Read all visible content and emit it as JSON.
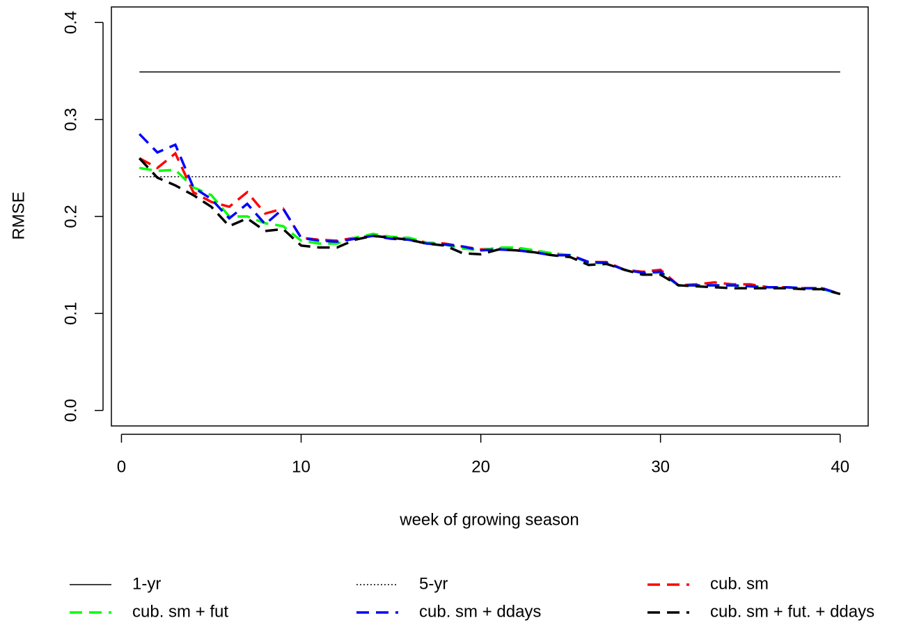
{
  "chart_data": {
    "type": "line",
    "x_label": "week of growing season",
    "y_label": "RMSE",
    "x": [
      1,
      2,
      3,
      4,
      5,
      6,
      7,
      8,
      9,
      10,
      11,
      12,
      13,
      14,
      15,
      16,
      17,
      18,
      19,
      20,
      21,
      22,
      23,
      24,
      25,
      26,
      27,
      28,
      29,
      30,
      31,
      32,
      33,
      34,
      35,
      36,
      37,
      38,
      39,
      40
    ],
    "series": [
      {
        "name": "1-yr",
        "color": "#000000",
        "linestyle": "solid",
        "values": [
          0.349,
          0.349,
          0.349,
          0.349,
          0.349,
          0.349,
          0.349,
          0.349,
          0.349,
          0.349,
          0.349,
          0.349,
          0.349,
          0.349,
          0.349,
          0.349,
          0.349,
          0.349,
          0.349,
          0.349,
          0.349,
          0.349,
          0.349,
          0.349,
          0.349,
          0.349,
          0.349,
          0.349,
          0.349,
          0.349,
          0.349,
          0.349,
          0.349,
          0.349,
          0.349,
          0.349,
          0.349,
          0.349,
          0.349,
          0.349
        ]
      },
      {
        "name": "5-yr",
        "color": "#000000",
        "linestyle": "dotted",
        "values": [
          0.241,
          0.241,
          0.241,
          0.241,
          0.241,
          0.241,
          0.241,
          0.241,
          0.241,
          0.241,
          0.241,
          0.241,
          0.241,
          0.241,
          0.241,
          0.241,
          0.241,
          0.241,
          0.241,
          0.241,
          0.241,
          0.241,
          0.241,
          0.241,
          0.241,
          0.241,
          0.241,
          0.241,
          0.241,
          0.241,
          0.241,
          0.241,
          0.241,
          0.241,
          0.241,
          0.241,
          0.241,
          0.241,
          0.241,
          0.241
        ]
      },
      {
        "name": "cub. sm",
        "color": "#ff0000",
        "linestyle": "dashed",
        "values": [
          0.26,
          0.25,
          0.265,
          0.225,
          0.215,
          0.21,
          0.225,
          0.203,
          0.208,
          0.178,
          0.176,
          0.175,
          0.178,
          0.18,
          0.179,
          0.177,
          0.173,
          0.172,
          0.169,
          0.166,
          0.167,
          0.167,
          0.164,
          0.162,
          0.16,
          0.153,
          0.153,
          0.145,
          0.143,
          0.145,
          0.129,
          0.13,
          0.132,
          0.13,
          0.13,
          0.127,
          0.127,
          0.126,
          0.126,
          0.12
        ]
      },
      {
        "name": "cub. sm + fut",
        "color": "#00ff00",
        "linestyle": "dashed",
        "values": [
          0.25,
          0.247,
          0.248,
          0.23,
          0.222,
          0.2,
          0.2,
          0.193,
          0.19,
          0.175,
          0.172,
          0.172,
          0.178,
          0.182,
          0.179,
          0.178,
          0.173,
          0.171,
          0.167,
          0.165,
          0.168,
          0.168,
          0.165,
          0.162,
          0.16,
          0.152,
          0.152,
          0.145,
          0.142,
          0.142,
          0.129,
          0.129,
          0.129,
          0.129,
          0.128,
          0.127,
          0.127,
          0.126,
          0.125,
          0.12
        ]
      },
      {
        "name": "cub. sm + ddays",
        "color": "#0000ff",
        "linestyle": "dashed",
        "values": [
          0.285,
          0.266,
          0.274,
          0.23,
          0.218,
          0.198,
          0.213,
          0.192,
          0.208,
          0.178,
          0.175,
          0.174,
          0.177,
          0.18,
          0.177,
          0.176,
          0.172,
          0.171,
          0.169,
          0.165,
          0.166,
          0.165,
          0.163,
          0.16,
          0.16,
          0.153,
          0.152,
          0.145,
          0.142,
          0.143,
          0.129,
          0.129,
          0.129,
          0.129,
          0.128,
          0.127,
          0.127,
          0.126,
          0.126,
          0.12
        ]
      },
      {
        "name": "cub. sm + fut. + ddays",
        "color": "#000000",
        "linestyle": "dashed",
        "values": [
          0.26,
          0.24,
          0.232,
          0.222,
          0.21,
          0.19,
          0.198,
          0.185,
          0.187,
          0.17,
          0.168,
          0.168,
          0.176,
          0.18,
          0.178,
          0.176,
          0.172,
          0.17,
          0.162,
          0.161,
          0.166,
          0.165,
          0.163,
          0.16,
          0.158,
          0.15,
          0.151,
          0.145,
          0.14,
          0.14,
          0.129,
          0.128,
          0.127,
          0.126,
          0.126,
          0.126,
          0.126,
          0.125,
          0.125,
          0.12
        ]
      }
    ],
    "xlim": [
      -0.56,
      41.56
    ],
    "ylim": [
      -0.016,
      0.416
    ],
    "xticks": [
      0,
      10,
      20,
      30,
      40
    ],
    "yticks": [
      {
        "value": 0,
        "label": "0.0"
      },
      0.1,
      0.2,
      0.3,
      0.4
    ],
    "legend_position": "bottom"
  }
}
